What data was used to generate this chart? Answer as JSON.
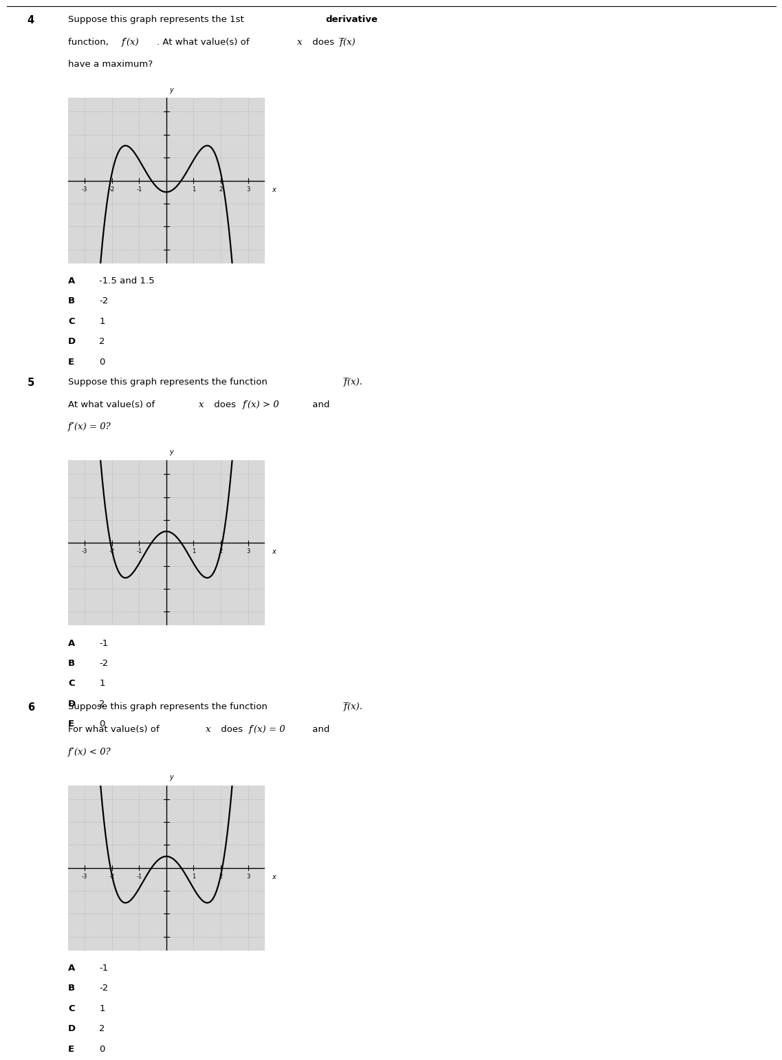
{
  "bg_color": "#ffffff",
  "graph_bg": "#d8d8d8",
  "grid_color": "#aaaaaa",
  "curve_color": "#000000",
  "axis_color": "#000000",
  "fig_width": 11.89,
  "fig_height": 15.49,
  "xlim": [
    -3.6,
    3.6
  ],
  "ylim": [
    -3.6,
    3.6
  ],
  "q4": {
    "number": "4",
    "choices": [
      [
        "A",
        "-1.5 and 1.5"
      ],
      [
        "B",
        "-2"
      ],
      [
        "C",
        "1"
      ],
      [
        "D",
        "2"
      ],
      [
        "E",
        "0"
      ]
    ]
  },
  "q5": {
    "number": "5",
    "choices": [
      [
        "A",
        "-1"
      ],
      [
        "B",
        "-2"
      ],
      [
        "C",
        "1"
      ],
      [
        "D",
        "2"
      ],
      [
        "E",
        "0"
      ]
    ]
  },
  "q6": {
    "number": "6",
    "choices": [
      [
        "A",
        "-1"
      ],
      [
        "B",
        "-2"
      ],
      [
        "C",
        "1"
      ],
      [
        "D",
        "2"
      ],
      [
        "E",
        "0"
      ]
    ]
  }
}
